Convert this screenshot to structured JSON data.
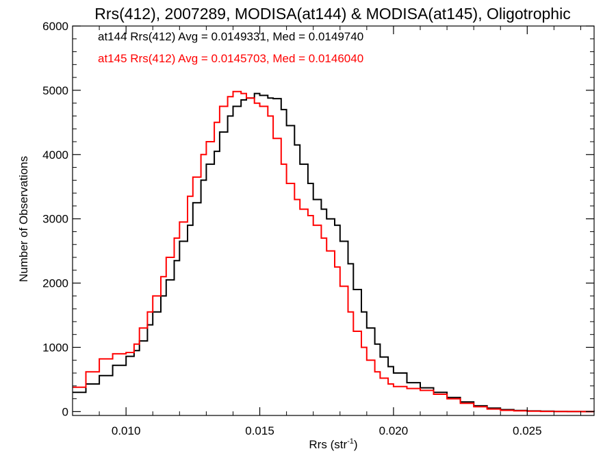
{
  "chart_data": {
    "type": "line",
    "title": "Rrs(412), 2007289, MODISA(at144) & MODISA(at145), Oligotrophic",
    "xlabel_main": "Rrs (str",
    "xlabel_sup": "-1",
    "xlabel_close": ")",
    "ylabel": "Number of Observations",
    "xlim": [
      0.008,
      0.0275
    ],
    "ylim": [
      -60,
      6000
    ],
    "xticks": [
      0.01,
      0.015,
      0.02,
      0.025
    ],
    "xtick_labels": [
      "0.010",
      "0.015",
      "0.020",
      "0.025"
    ],
    "yticks": [
      0,
      1000,
      2000,
      3000,
      4000,
      5000,
      6000
    ],
    "ytick_labels": [
      "0",
      "1000",
      "2000",
      "3000",
      "4000",
      "5000",
      "6000"
    ],
    "grid": false,
    "legend_position": "top-left",
    "series": [
      {
        "name": "at144",
        "color": "#000000",
        "annotation": "at144 Rrs(412) Avg = 0.0149331, Med = 0.0149740",
        "x": [
          0.008,
          0.0085,
          0.009,
          0.0095,
          0.01,
          0.0103,
          0.0105,
          0.0108,
          0.011,
          0.0113,
          0.0115,
          0.0118,
          0.012,
          0.0123,
          0.0125,
          0.0128,
          0.013,
          0.0133,
          0.0135,
          0.0138,
          0.014,
          0.0143,
          0.0145,
          0.0148,
          0.015,
          0.0153,
          0.0155,
          0.0158,
          0.016,
          0.0163,
          0.0165,
          0.0168,
          0.017,
          0.0173,
          0.0175,
          0.0178,
          0.018,
          0.0183,
          0.0185,
          0.0188,
          0.019,
          0.0193,
          0.0195,
          0.0198,
          0.02,
          0.0205,
          0.021,
          0.0215,
          0.022,
          0.0225,
          0.023,
          0.0235,
          0.024,
          0.0245,
          0.025,
          0.0255,
          0.026,
          0.0265,
          0.027,
          0.0275
        ],
        "y": [
          300,
          430,
          560,
          720,
          860,
          950,
          1100,
          1350,
          1550,
          1800,
          2050,
          2350,
          2650,
          2900,
          3250,
          3600,
          3850,
          4050,
          4350,
          4600,
          4750,
          4850,
          4880,
          4950,
          4920,
          4880,
          4870,
          4700,
          4450,
          4150,
          3850,
          3550,
          3300,
          3150,
          3000,
          2900,
          2650,
          2300,
          1900,
          1550,
          1300,
          1050,
          850,
          700,
          600,
          450,
          370,
          300,
          220,
          150,
          90,
          55,
          30,
          18,
          10,
          6,
          3,
          2,
          1,
          0
        ]
      },
      {
        "name": "at145",
        "color": "#ff0000",
        "annotation": "at145 Rrs(412) Avg = 0.0145703, Med = 0.0146040",
        "x": [
          0.008,
          0.0085,
          0.009,
          0.0095,
          0.01,
          0.0103,
          0.0105,
          0.0108,
          0.011,
          0.0113,
          0.0115,
          0.0118,
          0.012,
          0.0123,
          0.0125,
          0.0128,
          0.013,
          0.0133,
          0.0135,
          0.0138,
          0.014,
          0.0143,
          0.0145,
          0.0148,
          0.015,
          0.0153,
          0.0155,
          0.0158,
          0.016,
          0.0163,
          0.0165,
          0.0168,
          0.017,
          0.0173,
          0.0175,
          0.0178,
          0.018,
          0.0183,
          0.0185,
          0.0188,
          0.019,
          0.0193,
          0.0195,
          0.0198,
          0.02,
          0.0205,
          0.021,
          0.0215,
          0.022,
          0.0225,
          0.023,
          0.0235,
          0.024,
          0.0245,
          0.025,
          0.0255,
          0.026,
          0.0265,
          0.027,
          0.0275
        ],
        "y": [
          380,
          620,
          820,
          900,
          920,
          1050,
          1300,
          1550,
          1800,
          2100,
          2400,
          2700,
          2950,
          3350,
          3650,
          4000,
          4200,
          4500,
          4750,
          4900,
          4980,
          4950,
          4880,
          4800,
          4750,
          4600,
          4250,
          3850,
          3550,
          3300,
          3150,
          3050,
          2900,
          2700,
          2500,
          2250,
          1950,
          1550,
          1250,
          1000,
          800,
          620,
          520,
          430,
          390,
          360,
          330,
          270,
          200,
          130,
          75,
          40,
          20,
          12,
          6,
          3,
          2,
          1,
          0,
          0
        ]
      }
    ]
  }
}
